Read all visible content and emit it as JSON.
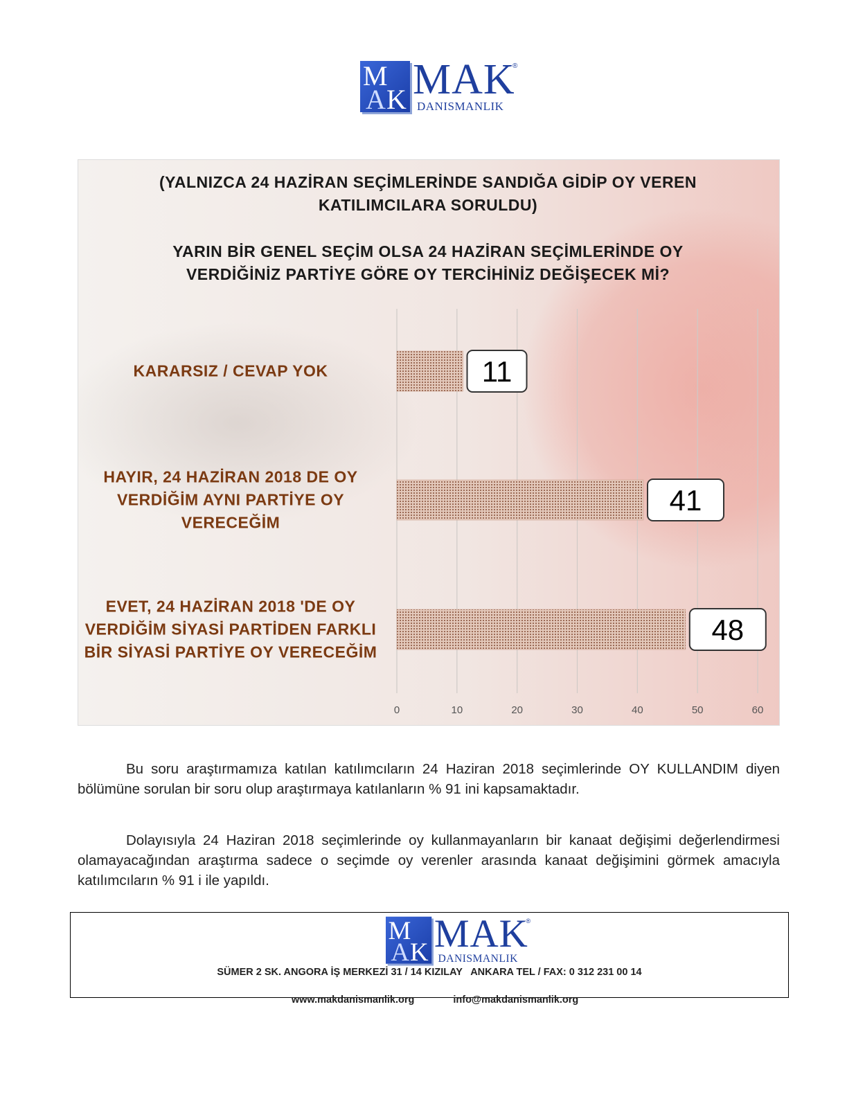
{
  "header": {
    "logo": {
      "symbol": [
        "M",
        "A",
        "K"
      ],
      "name": "MAK",
      "registered": "®",
      "sub": "DANISMANLIK"
    }
  },
  "chart_data": {
    "type": "barh",
    "title": "(YALNIZCA 24 HAZİRAN SEÇİMLERİNDE SANDIĞA GİDİP OY VEREN KATILIMCILARA SORULDU)",
    "subtitle": "YARIN BİR GENEL SEÇİM OLSA 24 HAZİRAN SEÇİMLERİNDE OY VERDİĞİNİZ PARTİYE GÖRE OY TERCİHİNİZ DEĞİŞECEK Mİ?",
    "categories": [
      "KARARSIZ / CEVAP YOK",
      "HAYIR, 24 HAZİRAN 2018 DE OY VERDİĞİM AYNI PARTİYE OY VERECEĞİM",
      "EVET, 24 HAZİRAN 2018 'DE OY VERDİĞİM SİYASİ PARTİDEN FARKLI BİR SİYASİ PARTİYE OY VERECEĞİM"
    ],
    "values": [
      11,
      41,
      48
    ],
    "color": "#c89a86",
    "xlim": [
      0,
      60
    ],
    "xticks": [
      0,
      10,
      20,
      30,
      40,
      50,
      60
    ],
    "grid": true
  },
  "paragraphs": [
    "Bu soru araştırmamıza katılan katılımcıların 24 Haziran 2018 seçimlerinde OY KULLANDIM diyen bölümüne sorulan bir soru olup araştırmaya katılanların % 91 ini kapsamaktadır.",
    "Dolayısıyla 24 Haziran 2018 seçimlerinde oy kullanmayanların bir kanaat değişimi değerlendirmesi olamayacağından araştırma sadece o seçimde oy verenler arasında kanaat değişimini görmek amacıyla katılımcıların % 91 i ile yapıldı."
  ],
  "footer": {
    "logo": {
      "symbol": [
        "M",
        "A",
        "K"
      ],
      "name": "MAK",
      "registered": "®",
      "sub": "DANISMANLIK"
    },
    "address": "SÜMER 2 SK. ANGORA İŞ MERKEZİ 31 / 14 KIZILAY   ANKARA TEL / FAX: 0 312 231 00 14",
    "web": "www.makdanismanlik.org",
    "email": "info@makdanismanlik.org"
  }
}
